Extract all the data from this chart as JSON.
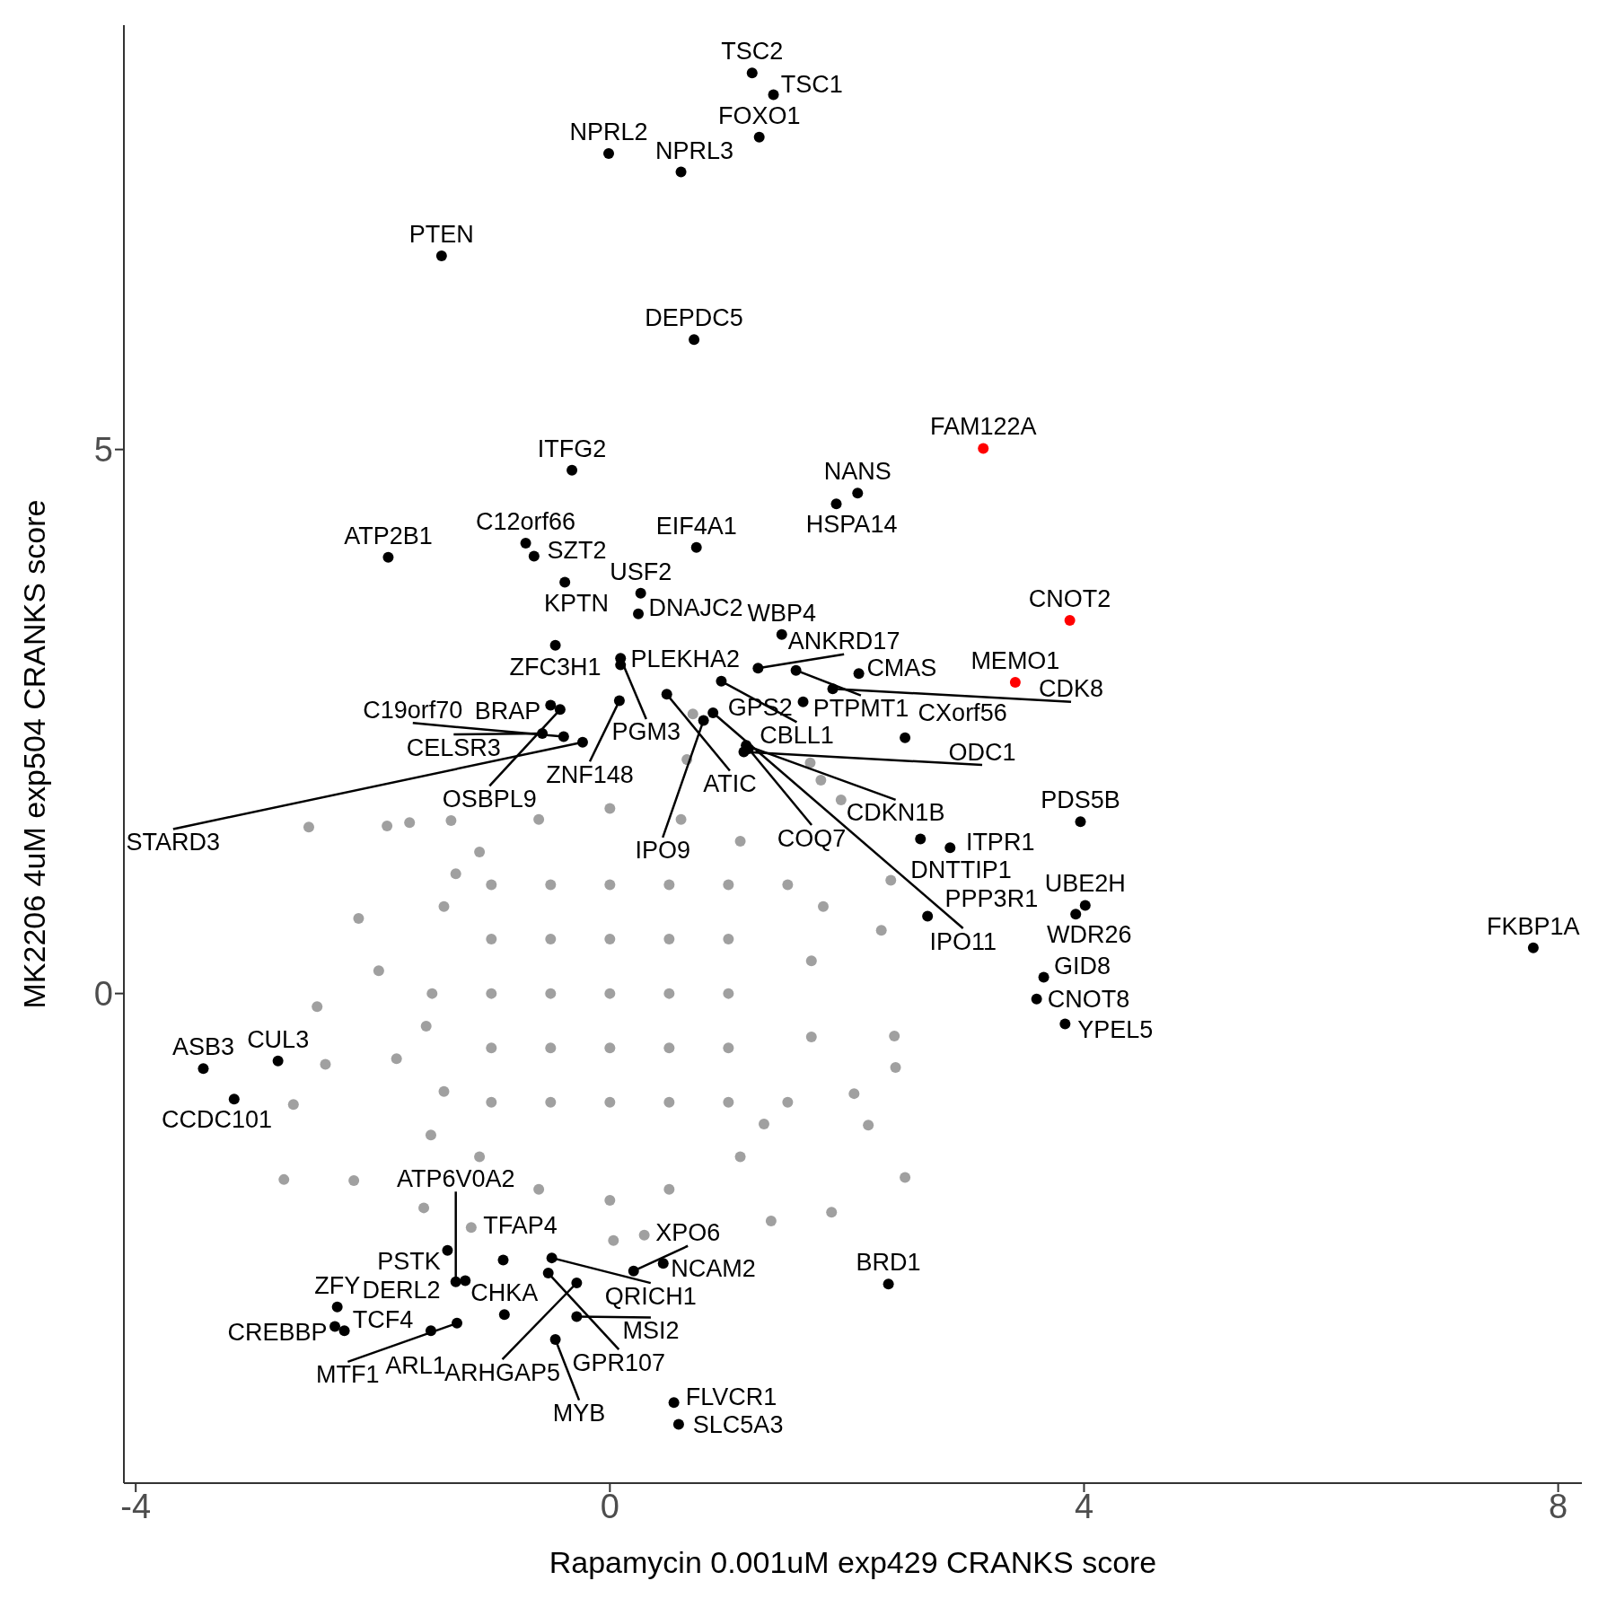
{
  "chart_data": {
    "type": "scatter",
    "xlabel": "Rapamycin 0.001uM exp429 CRANKS score",
    "ylabel": "MK2206 4uM exp504 CRANKS score",
    "xlim": [
      -4.1,
      8.2
    ],
    "ylim": [
      -4.5,
      8.9
    ],
    "xticks": [
      -4,
      0,
      4,
      8
    ],
    "yticks": [
      0,
      5
    ],
    "grid": false,
    "marker": "circle",
    "series": [
      {
        "color": "#a0a0a0",
        "x": [
          -2.54,
          -1.88,
          -1.69,
          -2.75,
          -2.47,
          -2.4,
          -2.67,
          -2.16,
          -2.12,
          -1.95,
          2.4,
          2.41,
          2.49,
          2.37,
          2.29,
          2.18,
          2.06,
          1.95,
          1.78,
          1.69,
          0.65,
          0.7,
          1.87,
          1.36,
          -1.17,
          -1.57,
          -1.34,
          -1.51,
          0.03,
          0.29,
          -1.5,
          -1.4,
          -1.1,
          -0.6,
          0,
          0.6,
          1.1,
          1.5,
          1.7,
          1.7,
          1.5,
          1.1,
          0.5,
          0,
          -0.6,
          -1.1,
          -1.4,
          -1.55,
          -1,
          -1,
          -1,
          -1,
          -1,
          -0.5,
          -0.5,
          -0.5,
          -0.5,
          -0.5,
          0,
          0,
          0,
          0,
          0,
          0.5,
          0.5,
          0.5,
          0.5,
          0.5,
          1,
          1,
          1,
          1,
          1,
          1.8,
          -1.8,
          1.3,
          -1.3
        ],
        "values": [
          1.53,
          1.54,
          1.57,
          -1.71,
          -0.12,
          -0.65,
          -1.02,
          -1.72,
          0.69,
          0.21,
          -0.39,
          -0.68,
          -1.69,
          1.04,
          0.58,
          -1.21,
          -0.92,
          1.78,
          1.96,
          2.12,
          2.15,
          2.57,
          -2.01,
          -2.09,
          -2.15,
          -1.97,
          1.59,
          -1.3,
          -2.27,
          -2.22,
          0,
          0.8,
          1.3,
          1.6,
          1.7,
          1.6,
          1.4,
          1,
          0.3,
          -0.4,
          -1,
          -1.5,
          -1.8,
          -1.9,
          -1.8,
          -1.5,
          -0.9,
          -0.3,
          -1,
          -0.5,
          0,
          0.5,
          1,
          -1,
          -0.5,
          0,
          0.5,
          1,
          -1,
          -0.5,
          0,
          0.5,
          1,
          -1,
          -0.5,
          0,
          0.5,
          1,
          -1,
          -0.5,
          0,
          0.5,
          1,
          0.8,
          -0.6,
          -1.2,
          1.1
        ]
      },
      {
        "color": "#000000",
        "x": [
          1.2,
          1.38,
          1.26,
          -0.01,
          0.6,
          -1.42,
          0.71,
          -0.32,
          1.91,
          2.09,
          -0.71,
          -0.64,
          0.73,
          -1.87,
          -0.38,
          0.26,
          0.24,
          -0.46,
          0.09,
          0.09,
          1.45,
          1.25,
          1.57,
          2.1,
          0.94,
          1.88,
          0.08,
          0.48,
          -0.5,
          -0.42,
          0.79,
          0.87,
          1.63,
          -0.57,
          -0.39,
          -0.23,
          1.15,
          1.13,
          1.17,
          2.49,
          2.62,
          2.87,
          3.97,
          4.01,
          3.93,
          2.68,
          3.66,
          3.6,
          3.84,
          7.79,
          -3.43,
          -2.8,
          -3.17,
          -1.37,
          -0.9,
          -0.49,
          -0.52,
          0.2,
          0.45,
          -0.28,
          2.35,
          -2.3,
          -2.32,
          -2.24,
          -1.22,
          -1.3,
          -1.51,
          -1.29,
          -0.89,
          -0.28,
          -0.46,
          0.54,
          0.58
        ],
        "values": [
          8.46,
          8.26,
          7.87,
          7.72,
          7.55,
          6.78,
          6.01,
          4.81,
          4.5,
          4.6,
          4.14,
          4.02,
          4.1,
          4.01,
          3.78,
          3.68,
          3.49,
          3.2,
          3.02,
          3.08,
          3.3,
          2.99,
          2.97,
          2.94,
          2.87,
          2.8,
          2.69,
          2.75,
          2.65,
          2.61,
          2.51,
          2.58,
          2.68,
          2.39,
          2.36,
          2.31,
          2.28,
          2.22,
          2.25,
          2.35,
          1.42,
          1.34,
          1.58,
          0.81,
          0.73,
          0.71,
          0.15,
          -0.05,
          -0.28,
          0.42,
          -0.69,
          -0.62,
          -0.97,
          -2.36,
          -2.45,
          -2.43,
          -2.57,
          -2.55,
          -2.48,
          -2.66,
          -2.67,
          -2.88,
          -3.06,
          -3.1,
          -2.64,
          -2.65,
          -3.1,
          -3.03,
          -2.95,
          -2.97,
          -3.18,
          -3.76,
          -3.96
        ]
      },
      {
        "color": "#ff0000",
        "x": [
          3.15,
          3.88,
          3.42
        ],
        "values": [
          5.01,
          3.43,
          2.86
        ]
      }
    ],
    "annotations": [
      {
        "text": "TSC2",
        "x": 1.2,
        "y": 8.46
      },
      {
        "text": "TSC1",
        "x": 1.38,
        "y": 8.26
      },
      {
        "text": "FOXO1",
        "x": 1.26,
        "y": 7.87
      },
      {
        "text": "NPRL2",
        "x": -0.01,
        "y": 7.72
      },
      {
        "text": "NPRL3",
        "x": 0.6,
        "y": 7.55
      },
      {
        "text": "PTEN",
        "x": -1.42,
        "y": 6.78
      },
      {
        "text": "DEPDC5",
        "x": 0.71,
        "y": 6.01
      },
      {
        "text": "FAM122A",
        "x": 3.15,
        "y": 5.01
      },
      {
        "text": "ITFG2",
        "x": -0.32,
        "y": 4.81
      },
      {
        "text": "HSPA14",
        "x": 1.91,
        "y": 4.5
      },
      {
        "text": "NANS",
        "x": 2.09,
        "y": 4.6
      },
      {
        "text": "C12orf66",
        "x": -0.71,
        "y": 4.14
      },
      {
        "text": "SZT2",
        "x": -0.64,
        "y": 4.02
      },
      {
        "text": "EIF4A1",
        "x": 0.73,
        "y": 4.1
      },
      {
        "text": "ATP2B1",
        "x": -1.87,
        "y": 4.01
      },
      {
        "text": "KPTN",
        "x": -0.38,
        "y": 3.78
      },
      {
        "text": "USF2",
        "x": 0.26,
        "y": 3.68
      },
      {
        "text": "DNAJC2",
        "x": 0.24,
        "y": 3.49
      },
      {
        "text": "CNOT2",
        "x": 3.88,
        "y": 3.43
      },
      {
        "text": "ZFC3H1",
        "x": -0.46,
        "y": 3.2
      },
      {
        "text": "PLEKHA2",
        "x": 0.09,
        "y": 3.02
      },
      {
        "text": "PGM3",
        "x": 0.09,
        "y": 3.08
      },
      {
        "text": "WBP4",
        "x": 1.45,
        "y": 3.3
      },
      {
        "text": "ANKRD17",
        "x": 1.25,
        "y": 2.99
      },
      {
        "text": "PTPMT1",
        "x": 1.57,
        "y": 2.97
      },
      {
        "text": "CMAS",
        "x": 2.1,
        "y": 2.94
      },
      {
        "text": "CBLL1",
        "x": 0.94,
        "y": 2.87
      },
      {
        "text": "CDK8",
        "x": 1.88,
        "y": 2.8
      },
      {
        "text": "MEMO1",
        "x": 3.42,
        "y": 2.86
      },
      {
        "text": "ZNF148",
        "x": 0.08,
        "y": 2.69
      },
      {
        "text": "ATIC",
        "x": 0.48,
        "y": 2.75
      },
      {
        "text": "BRAP",
        "x": -0.5,
        "y": 2.65
      },
      {
        "text": "OSBPL9",
        "x": -0.42,
        "y": 2.61
      },
      {
        "text": "IPO9",
        "x": 0.79,
        "y": 2.51
      },
      {
        "text": "IPO11",
        "x": 0.87,
        "y": 2.58
      },
      {
        "text": "GPS2",
        "x": 1.63,
        "y": 2.68
      },
      {
        "text": "CELSR3",
        "x": -0.57,
        "y": 2.39
      },
      {
        "text": "C19orf70",
        "x": -0.39,
        "y": 2.36
      },
      {
        "text": "STARD3",
        "x": -0.23,
        "y": 2.31
      },
      {
        "text": "CDKN1B",
        "x": 1.15,
        "y": 2.28
      },
      {
        "text": "ODC1",
        "x": 1.13,
        "y": 2.22
      },
      {
        "text": "COQ7",
        "x": 1.17,
        "y": 2.25
      },
      {
        "text": "CXorf56",
        "x": 2.49,
        "y": 2.35
      },
      {
        "text": "DNTTIP1",
        "x": 2.62,
        "y": 1.42
      },
      {
        "text": "ITPR1",
        "x": 2.87,
        "y": 1.34
      },
      {
        "text": "PDS5B",
        "x": 3.97,
        "y": 1.58
      },
      {
        "text": "UBE2H",
        "x": 4.01,
        "y": 0.81
      },
      {
        "text": "WDR26",
        "x": 3.93,
        "y": 0.73
      },
      {
        "text": "PPP3R1",
        "x": 2.68,
        "y": 0.71
      },
      {
        "text": "GID8",
        "x": 3.66,
        "y": 0.15
      },
      {
        "text": "CNOT8",
        "x": 3.6,
        "y": -0.05
      },
      {
        "text": "YPEL5",
        "x": 3.84,
        "y": -0.28
      },
      {
        "text": "FKBP1A",
        "x": 7.79,
        "y": 0.42
      },
      {
        "text": "ASB3",
        "x": -3.43,
        "y": -0.69
      },
      {
        "text": "CUL3",
        "x": -2.8,
        "y": -0.62
      },
      {
        "text": "CCDC101",
        "x": -3.17,
        "y": -0.97
      },
      {
        "text": "PSTK",
        "x": -1.37,
        "y": -2.36
      },
      {
        "text": "TFAP4",
        "x": -0.9,
        "y": -2.45
      },
      {
        "text": "QRICH1",
        "x": -0.49,
        "y": -2.43
      },
      {
        "text": "GPR107",
        "x": -0.52,
        "y": -2.57
      },
      {
        "text": "XPO6",
        "x": 0.2,
        "y": -2.55
      },
      {
        "text": "NCAM2",
        "x": 0.45,
        "y": -2.48
      },
      {
        "text": "ARHGAP5",
        "x": -0.28,
        "y": -2.66
      },
      {
        "text": "BRD1",
        "x": 2.35,
        "y": -2.67
      },
      {
        "text": "ZFY",
        "x": -2.3,
        "y": -2.88
      },
      {
        "text": "CREBBP",
        "x": -2.32,
        "y": -3.06
      },
      {
        "text": "TCF4",
        "x": -2.24,
        "y": -3.1
      },
      {
        "text": "DERL2",
        "x": -1.22,
        "y": -2.64
      },
      {
        "text": "ATP6V0A2",
        "x": -1.3,
        "y": -2.65
      },
      {
        "text": "ARL1",
        "x": -1.51,
        "y": -3.1
      },
      {
        "text": "MTF1",
        "x": -1.29,
        "y": -3.03
      },
      {
        "text": "CHKA",
        "x": -0.89,
        "y": -2.95
      },
      {
        "text": "MSI2",
        "x": -0.28,
        "y": -2.97
      },
      {
        "text": "MYB",
        "x": -0.46,
        "y": -3.18
      },
      {
        "text": "FLVCR1",
        "x": 0.54,
        "y": -3.76
      },
      {
        "text": "SLC5A3",
        "x": 0.58,
        "y": -3.96
      }
    ]
  }
}
